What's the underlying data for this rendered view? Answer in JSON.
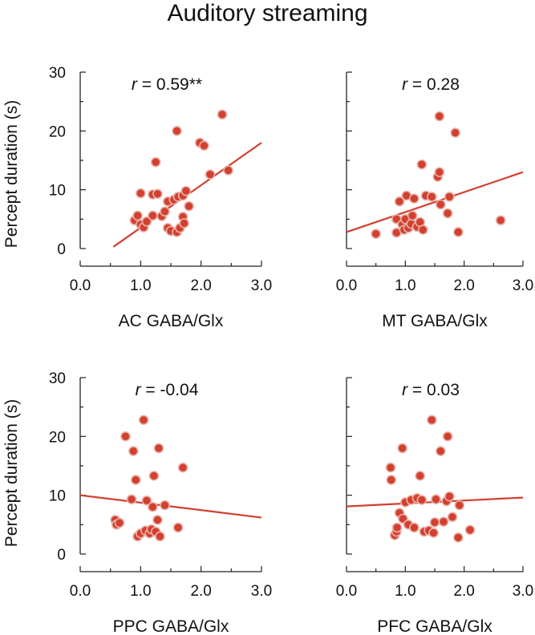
{
  "figure": {
    "title": "Auditory streaming",
    "ylabel": "Percept duration (s)"
  },
  "colors": {
    "point": "#d2402f",
    "point_edge": "#ffffff",
    "fit": "#d2402f",
    "axis": "#222222"
  },
  "chart_data": [
    {
      "type": "scatter",
      "xlabel": "AC GABA/Glx",
      "ylabel": "Percept duration (s)",
      "annotation": "r = 0.59**",
      "annotation_r": "r",
      "annotation_value": " = 0.59**",
      "xlim": [
        0,
        3
      ],
      "ylim": [
        0,
        30
      ],
      "xticks": [
        "0.0",
        "1.0",
        "2.0",
        "3.0"
      ],
      "yticks": [
        "0",
        "10",
        "20",
        "30"
      ],
      "show_yticklabels": true,
      "fit": {
        "x": [
          0.55,
          3.0
        ],
        "y": [
          0.3,
          18.0
        ]
      },
      "points": [
        [
          0.9,
          4.8
        ],
        [
          0.95,
          5.6
        ],
        [
          1.0,
          9.4
        ],
        [
          1.0,
          4.1
        ],
        [
          1.05,
          3.6
        ],
        [
          1.1,
          4.6
        ],
        [
          1.2,
          9.2
        ],
        [
          1.2,
          5.6
        ],
        [
          1.25,
          14.7
        ],
        [
          1.28,
          9.3
        ],
        [
          1.35,
          5.5
        ],
        [
          1.4,
          6.3
        ],
        [
          1.45,
          3.5
        ],
        [
          1.45,
          8.0
        ],
        [
          1.5,
          3.0
        ],
        [
          1.55,
          8.3
        ],
        [
          1.6,
          2.8
        ],
        [
          1.6,
          20.0
        ],
        [
          1.62,
          8.8
        ],
        [
          1.65,
          3.5
        ],
        [
          1.7,
          5.4
        ],
        [
          1.7,
          9.0
        ],
        [
          1.72,
          4.3
        ],
        [
          1.75,
          9.8
        ],
        [
          1.8,
          7.2
        ],
        [
          1.98,
          18.0
        ],
        [
          2.05,
          17.5
        ],
        [
          2.15,
          12.6
        ],
        [
          2.35,
          22.8
        ],
        [
          2.45,
          13.3
        ]
      ]
    },
    {
      "type": "scatter",
      "xlabel": "MT GABA/Glx",
      "ylabel": "",
      "annotation": "r = 0.28",
      "annotation_r": "r",
      "annotation_value": " = 0.28",
      "xlim": [
        0,
        3
      ],
      "ylim": [
        0,
        30
      ],
      "xticks": [
        "0.0",
        "1.0",
        "2.0",
        "3.0"
      ],
      "yticks": [
        "0",
        "10",
        "20",
        "30"
      ],
      "show_yticklabels": false,
      "fit": {
        "x": [
          0.0,
          3.0
        ],
        "y": [
          2.8,
          13.0
        ]
      },
      "points": [
        [
          0.5,
          2.5
        ],
        [
          0.85,
          5.0
        ],
        [
          0.85,
          2.7
        ],
        [
          0.9,
          8.0
        ],
        [
          0.95,
          4.1
        ],
        [
          0.98,
          3.2
        ],
        [
          1.0,
          5.0
        ],
        [
          1.02,
          9.0
        ],
        [
          1.05,
          3.5
        ],
        [
          1.1,
          4.2
        ],
        [
          1.12,
          5.6
        ],
        [
          1.15,
          8.5
        ],
        [
          1.2,
          3.7
        ],
        [
          1.25,
          4.5
        ],
        [
          1.28,
          14.3
        ],
        [
          1.3,
          3.2
        ],
        [
          1.35,
          9.0
        ],
        [
          1.45,
          8.8
        ],
        [
          1.55,
          12.2
        ],
        [
          1.58,
          13.0
        ],
        [
          1.58,
          22.5
        ],
        [
          1.6,
          7.5
        ],
        [
          1.72,
          6.0
        ],
        [
          1.75,
          8.8
        ],
        [
          1.85,
          19.7
        ],
        [
          1.9,
          2.8
        ],
        [
          2.62,
          4.8
        ]
      ]
    },
    {
      "type": "scatter",
      "xlabel": "PPC GABA/Glx",
      "ylabel": "Percept duration (s)",
      "annotation": "r = -0.04",
      "annotation_r": "r",
      "annotation_value": " = -0.04",
      "xlim": [
        0,
        3
      ],
      "ylim": [
        0,
        30
      ],
      "xticks": [
        "0.0",
        "1.0",
        "2.0",
        "3.0"
      ],
      "yticks": [
        "0",
        "10",
        "20",
        "30"
      ],
      "show_yticklabels": true,
      "fit": {
        "x": [
          0.0,
          3.0
        ],
        "y": [
          10.0,
          6.2
        ]
      },
      "points": [
        [
          0.58,
          5.8
        ],
        [
          0.6,
          5.0
        ],
        [
          0.65,
          5.3
        ],
        [
          0.75,
          20.0
        ],
        [
          0.85,
          9.3
        ],
        [
          0.88,
          17.5
        ],
        [
          0.92,
          12.6
        ],
        [
          0.95,
          3.0
        ],
        [
          1.0,
          3.5
        ],
        [
          1.05,
          22.8
        ],
        [
          1.08,
          4.0
        ],
        [
          1.1,
          9.1
        ],
        [
          1.15,
          3.5
        ],
        [
          1.18,
          4.2
        ],
        [
          1.2,
          8.0
        ],
        [
          1.22,
          13.3
        ],
        [
          1.25,
          3.8
        ],
        [
          1.28,
          5.8
        ],
        [
          1.3,
          18.0
        ],
        [
          1.32,
          3.0
        ],
        [
          1.4,
          8.3
        ],
        [
          1.62,
          4.5
        ],
        [
          1.7,
          14.7
        ]
      ]
    },
    {
      "type": "scatter",
      "xlabel": "PFC GABA/Glx",
      "ylabel": "",
      "annotation": "r = 0.03",
      "annotation_r": "r",
      "annotation_value": " = 0.03",
      "xlim": [
        0,
        3
      ],
      "ylim": [
        0,
        30
      ],
      "xticks": [
        "0.0",
        "1.0",
        "2.0",
        "3.0"
      ],
      "yticks": [
        "0",
        "10",
        "20",
        "30"
      ],
      "show_yticklabels": false,
      "fit": {
        "x": [
          0.0,
          3.0
        ],
        "y": [
          8.1,
          9.6
        ]
      },
      "points": [
        [
          0.75,
          14.7
        ],
        [
          0.76,
          12.6
        ],
        [
          0.82,
          3.2
        ],
        [
          0.85,
          3.8
        ],
        [
          0.86,
          4.5
        ],
        [
          0.9,
          7.0
        ],
        [
          0.95,
          18.0
        ],
        [
          0.96,
          6.0
        ],
        [
          1.0,
          8.8
        ],
        [
          1.05,
          5.0
        ],
        [
          1.1,
          9.2
        ],
        [
          1.15,
          4.5
        ],
        [
          1.2,
          9.5
        ],
        [
          1.25,
          13.3
        ],
        [
          1.28,
          9.2
        ],
        [
          1.32,
          3.8
        ],
        [
          1.4,
          4.0
        ],
        [
          1.45,
          22.8
        ],
        [
          1.48,
          3.6
        ],
        [
          1.5,
          5.4
        ],
        [
          1.52,
          9.3
        ],
        [
          1.6,
          17.5
        ],
        [
          1.65,
          5.5
        ],
        [
          1.7,
          9.0
        ],
        [
          1.72,
          20.0
        ],
        [
          1.75,
          9.8
        ],
        [
          1.8,
          6.3
        ],
        [
          1.9,
          2.8
        ],
        [
          1.92,
          8.3
        ],
        [
          2.1,
          4.1
        ]
      ]
    }
  ]
}
